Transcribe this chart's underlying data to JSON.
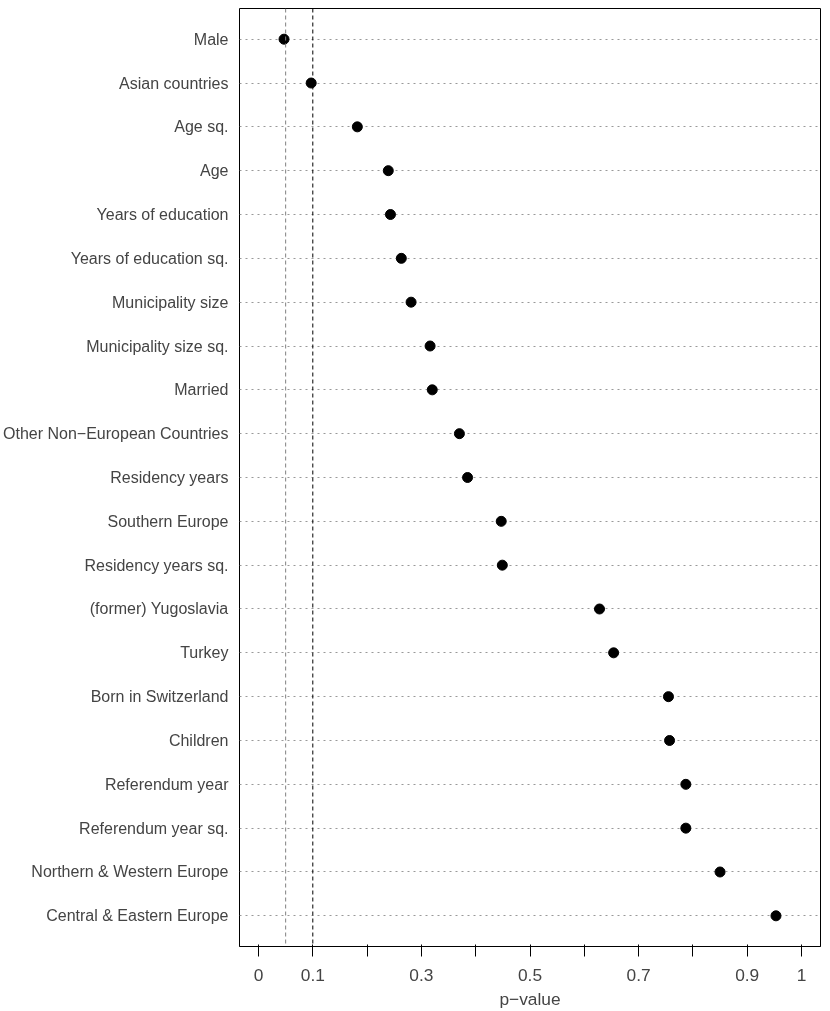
{
  "chart_data": {
    "type": "scatter",
    "xlabel": "p−value",
    "categories": [
      "Male",
      "Asian countries",
      "Age sq.",
      "Age",
      "Years of education",
      "Years of education sq.",
      "Municipality size",
      "Municipality size sq.",
      "Married",
      "Other Non−European Countries",
      "Residency years",
      "Southern Europe",
      "Residency years sq.",
      "(former) Yugoslavia",
      "Turkey",
      "Born in Switzerland",
      "Children",
      "Referendum year",
      "Referendum year sq.",
      "Northern & Western Europe",
      "Central & Eastern Europe"
    ],
    "orientation": "horizontal",
    "values": [
      0.047,
      0.097,
      0.182,
      0.239,
      0.243,
      0.263,
      0.281,
      0.316,
      0.32,
      0.37,
      0.385,
      0.447,
      0.449,
      0.628,
      0.654,
      0.755,
      0.757,
      0.787,
      0.787,
      0.85,
      0.953
    ],
    "color": "#000000",
    "marker": "circle",
    "xlim": [
      -0.035,
      1.035
    ],
    "xticks": [
      0,
      0.1,
      {
        "value": 0.2,
        "label": null
      },
      0.3,
      {
        "value": 0.4,
        "label": null
      },
      0.5,
      {
        "value": 0.6,
        "label": null
      },
      0.7,
      {
        "value": 0.8,
        "label": null
      },
      0.9,
      1
    ],
    "ref_lines": [
      {
        "axis": "x",
        "value": 0.05,
        "label": null,
        "color": "#808080",
        "line_style": "dashed"
      },
      {
        "axis": "x",
        "value": 0.1,
        "label": null,
        "color": "#000000",
        "line_style": "dashed"
      }
    ],
    "grid": "y"
  }
}
